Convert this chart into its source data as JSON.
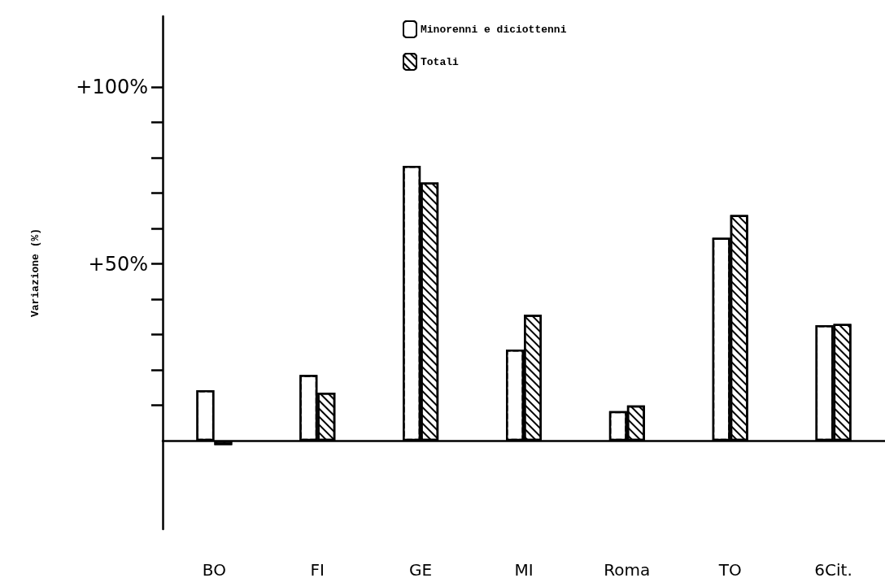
{
  "chart_data": {
    "type": "bar",
    "ylabel": "Variazione (%)",
    "categories": [
      "BO",
      "FI",
      "GE",
      "MI",
      "Roma",
      "TO",
      "6Cit."
    ],
    "series": [
      {
        "name": "Minorenni e diciottenni",
        "color": "#ffffff",
        "values": [
          14.3,
          18.6,
          77.7,
          25.8,
          8.4,
          57.4,
          32.7
        ]
      },
      {
        "name": "Totali",
        "color": "#000000",
        "values": [
          -1.2,
          13.6,
          73.0,
          35.6,
          10.0,
          63.8,
          33.0
        ]
      }
    ],
    "ylim": [
      -25,
      120
    ],
    "yticks": [
      {
        "value": 10,
        "label": null
      },
      {
        "value": 20,
        "label": null
      },
      {
        "value": 30,
        "label": null
      },
      {
        "value": 40,
        "label": null
      },
      {
        "value": 50,
        "label": "+50%"
      },
      {
        "value": 60,
        "label": null
      },
      {
        "value": 70,
        "label": null
      },
      {
        "value": 80,
        "label": null
      },
      {
        "value": 90,
        "label": null
      },
      {
        "value": 100,
        "label": "+100%"
      }
    ],
    "grid": false,
    "legend": "top"
  }
}
